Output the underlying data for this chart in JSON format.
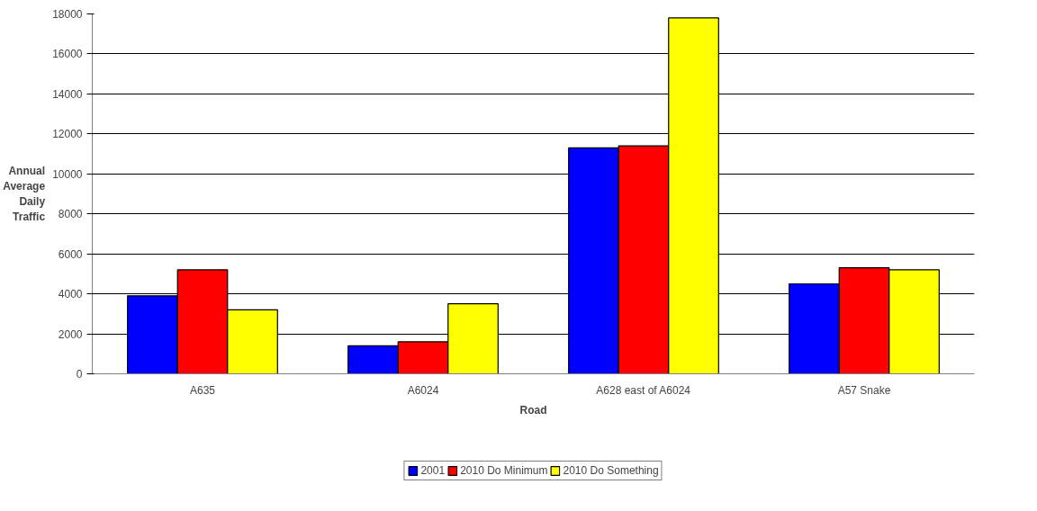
{
  "chart_data": {
    "type": "bar",
    "xlabel": "Road",
    "ylabel": "Annual Average Daily Traffic",
    "categories": [
      "A635",
      "A6024",
      "A628 east of A6024",
      "A57 Snake"
    ],
    "series": [
      {
        "name": "2001",
        "color": "#0000ff",
        "values": [
          3900,
          1400,
          11300,
          4500
        ]
      },
      {
        "name": "2010 Do Minimum",
        "color": "#ff0000",
        "values": [
          5200,
          1600,
          11400,
          5300
        ]
      },
      {
        "name": "2010 Do Something",
        "color": "#ffff00",
        "values": [
          3200,
          3500,
          17800,
          5200
        ]
      }
    ],
    "ylim": [
      0,
      18000
    ],
    "yticks": [
      0,
      2000,
      4000,
      6000,
      8000,
      10000,
      12000,
      14000,
      16000,
      18000
    ],
    "grid": "y",
    "legend": "bottom"
  }
}
